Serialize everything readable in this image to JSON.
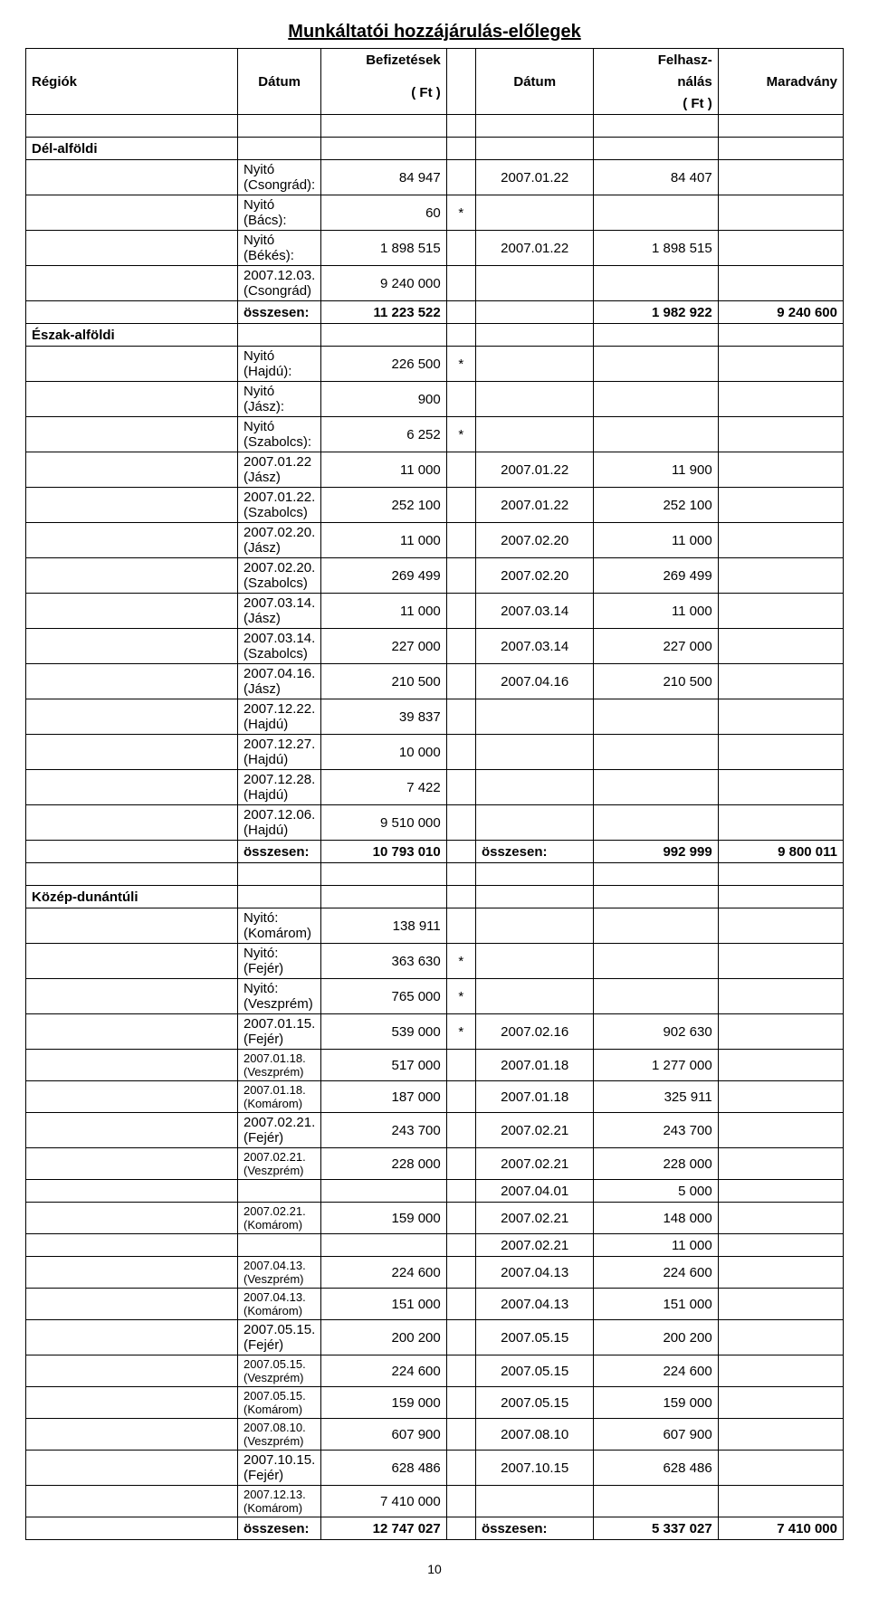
{
  "title": "Munkáltatói hozzájárulás-előlegek",
  "header": {
    "regiok": "Régiók",
    "datum1": "Dátum",
    "befiz": "Befizetések",
    "befiz_unit": "( Ft )",
    "datum2": "Dátum",
    "felhasz": "Felhasz-",
    "nalas": "nálás",
    "use_unit": "( Ft )",
    "maradvany": "Maradvány"
  },
  "pagenum": "10",
  "sections": {
    "del": {
      "name": "Dél-alföldi",
      "rows": [
        {
          "label": "Nyitó (Csongrád):",
          "pay": "84 947",
          "star": "",
          "date": "2007.01.22",
          "use": "84 407",
          "rem": ""
        },
        {
          "label": "Nyitó (Bács):",
          "pay": "60",
          "star": "*",
          "date": "",
          "use": "",
          "rem": ""
        },
        {
          "label": "Nyitó (Békés):",
          "pay": "1 898 515",
          "star": "",
          "date": "2007.01.22",
          "use": "1 898 515",
          "rem": ""
        },
        {
          "label": "2007.12.03. (Csongrád)",
          "pay": "9 240 000",
          "star": "",
          "date": "",
          "use": "",
          "rem": ""
        }
      ],
      "sum": {
        "label": "összesen:",
        "pay": "11 223 522",
        "star": "",
        "date": "",
        "use": "1 982 922",
        "rem": "9 240 600"
      }
    },
    "eszak": {
      "name": "Észak-alföldi",
      "rows": [
        {
          "label": "Nyitó (Hajdú):",
          "pay": "226 500",
          "star": "*",
          "date": "",
          "use": "",
          "rem": ""
        },
        {
          "label": "Nyitó (Jász):",
          "pay": "900",
          "star": "",
          "date": "",
          "use": "",
          "rem": ""
        },
        {
          "label": "Nyitó (Szabolcs):",
          "pay": "6 252",
          "star": "*",
          "date": "",
          "use": "",
          "rem": ""
        },
        {
          "label": "2007.01.22 (Jász)",
          "pay": "11 000",
          "star": "",
          "date": "2007.01.22",
          "use": "11 900",
          "rem": ""
        },
        {
          "label": "2007.01.22. (Szabolcs)",
          "pay": "252 100",
          "star": "",
          "date": "2007.01.22",
          "use": "252 100",
          "rem": ""
        },
        {
          "label": "2007.02.20. (Jász)",
          "pay": "11 000",
          "star": "",
          "date": "2007.02.20",
          "use": "11 000",
          "rem": ""
        },
        {
          "label": "2007.02.20. (Szabolcs)",
          "pay": "269 499",
          "star": "",
          "date": "2007.02.20",
          "use": "269 499",
          "rem": ""
        },
        {
          "label": "2007.03.14. (Jász)",
          "pay": "11 000",
          "star": "",
          "date": "2007.03.14",
          "use": "11 000",
          "rem": ""
        },
        {
          "label": "2007.03.14. (Szabolcs)",
          "pay": "227 000",
          "star": "",
          "date": "2007.03.14",
          "use": "227 000",
          "rem": ""
        },
        {
          "label": "2007.04.16. (Jász)",
          "pay": "210 500",
          "star": "",
          "date": "2007.04.16",
          "use": "210 500",
          "rem": ""
        },
        {
          "label": "2007.12.22. (Hajdú)",
          "pay": "39 837",
          "star": "",
          "date": "",
          "use": "",
          "rem": ""
        },
        {
          "label": "2007.12.27. (Hajdú)",
          "pay": "10 000",
          "star": "",
          "date": "",
          "use": "",
          "rem": ""
        },
        {
          "label": "2007.12.28. (Hajdú)",
          "pay": "7 422",
          "star": "",
          "date": "",
          "use": "",
          "rem": ""
        },
        {
          "label": "2007.12.06. (Hajdú)",
          "pay": "9 510 000",
          "star": "",
          "date": "",
          "use": "",
          "rem": ""
        }
      ],
      "sum": {
        "label": "összesen:",
        "pay": "10 793 010",
        "star": "",
        "date": "összesen:",
        "use": "992 999",
        "rem": "9 800 011"
      }
    },
    "kozep": {
      "name": "Közép-dunántúli",
      "rows": [
        {
          "label": "Nyitó: (Komárom)",
          "pay": "138 911",
          "star": "",
          "date": "",
          "use": "",
          "rem": "",
          "small": false
        },
        {
          "label": "Nyitó: (Fejér)",
          "pay": "363 630",
          "star": "*",
          "date": "",
          "use": "",
          "rem": "",
          "small": false
        },
        {
          "label": "Nyitó: (Veszprém)",
          "pay": "765 000",
          "star": "*",
          "date": "",
          "use": "",
          "rem": "",
          "small": false
        },
        {
          "label": "2007.01.15. (Fejér)",
          "pay": "539 000",
          "star": "*",
          "date": "2007.02.16",
          "use": "902 630",
          "rem": "",
          "small": false
        },
        {
          "label": "2007.01.18. (Veszprém)",
          "pay": "517 000",
          "star": "",
          "date": "2007.01.18",
          "use": "1 277 000",
          "rem": "",
          "small": true
        },
        {
          "label": "2007.01.18. (Komárom)",
          "pay": "187 000",
          "star": "",
          "date": "2007.01.18",
          "use": "325 911",
          "rem": "",
          "small": true
        },
        {
          "label": "2007.02.21. (Fejér)",
          "pay": "243 700",
          "star": "",
          "date": "2007.02.21",
          "use": "243 700",
          "rem": "",
          "small": false
        },
        {
          "label": "2007.02.21. (Veszprém)",
          "pay": "228 000",
          "star": "",
          "date": "2007.02.21",
          "use": "228 000",
          "rem": "",
          "small": true
        },
        {
          "label": "",
          "pay": "",
          "star": "",
          "date": "2007.04.01",
          "use": "5 000",
          "rem": "",
          "small": false
        },
        {
          "label": "2007.02.21. (Komárom)",
          "pay": "159 000",
          "star": "",
          "date": "2007.02.21",
          "use": "148 000",
          "rem": "",
          "small": true
        },
        {
          "label": "",
          "pay": "",
          "star": "",
          "date": "2007.02.21",
          "use": "11 000",
          "rem": "",
          "small": false
        },
        {
          "label": "2007.04.13. (Veszprém)",
          "pay": "224 600",
          "star": "",
          "date": "2007.04.13",
          "use": "224 600",
          "rem": "",
          "small": true
        },
        {
          "label": "2007.04.13. (Komárom)",
          "pay": "151 000",
          "star": "",
          "date": "2007.04.13",
          "use": "151 000",
          "rem": "",
          "small": true
        },
        {
          "label": "2007.05.15. (Fejér)",
          "pay": "200 200",
          "star": "",
          "date": "2007.05.15",
          "use": "200 200",
          "rem": "",
          "small": false
        },
        {
          "label": "2007.05.15. (Veszprém)",
          "pay": "224 600",
          "star": "",
          "date": "2007.05.15",
          "use": "224 600",
          "rem": "",
          "small": true
        },
        {
          "label": "2007.05.15. (Komárom)",
          "pay": "159 000",
          "star": "",
          "date": "2007.05.15",
          "use": "159 000",
          "rem": "",
          "small": true
        },
        {
          "label": "2007.08.10. (Veszprém)",
          "pay": "607 900",
          "star": "",
          "date": "2007.08.10",
          "use": "607 900",
          "rem": "",
          "small": true
        },
        {
          "label": "2007.10.15. (Fejér)",
          "pay": "628 486",
          "star": "",
          "date": "2007.10.15",
          "use": "628 486",
          "rem": "",
          "small": false
        },
        {
          "label": "2007.12.13. (Komárom)",
          "pay": "7 410 000",
          "star": "",
          "date": "",
          "use": "",
          "rem": "",
          "small": true
        }
      ],
      "sum": {
        "label": "összesen:",
        "pay": "12 747 027",
        "star": "",
        "date": "összesen:",
        "use": "5 337 027",
        "rem": "7 410 000"
      }
    }
  }
}
